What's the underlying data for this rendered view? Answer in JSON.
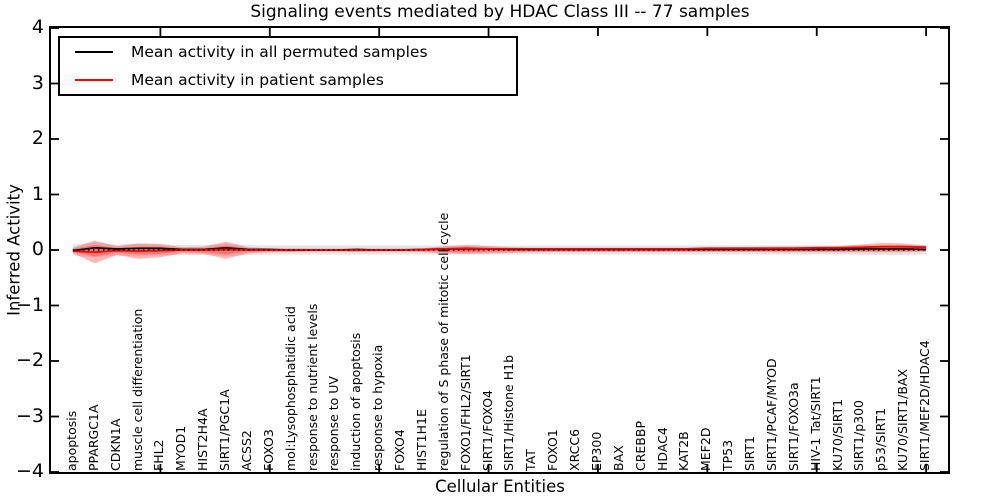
{
  "title": "Signaling events mediated by HDAC Class III -- 77 samples",
  "axes": {
    "ylabel": "Inferred Activity",
    "xlabel": "Cellular Entities",
    "ytick_labels": [
      "4",
      "3",
      "2",
      "1",
      "0",
      "−1",
      "−2",
      "−3",
      "−4"
    ],
    "ytick_values": [
      4,
      3,
      2,
      1,
      0,
      -1,
      -2,
      -3,
      -4
    ]
  },
  "legend": {
    "entries": [
      {
        "label": "Mean activity in all permuted samples",
        "color": "#000000"
      },
      {
        "label": "Mean activity in patient samples",
        "color": "#ff0000"
      }
    ]
  },
  "chart_data": {
    "type": "line",
    "title": "Signaling events mediated by HDAC Class III -- 77 samples",
    "xlabel": "Cellular Entities",
    "ylabel": "Inferred Activity",
    "ylim": [
      -4,
      4
    ],
    "grid": false,
    "legend_position": "upper left",
    "xtick_positions": [
      5,
      10,
      15,
      20,
      25,
      30,
      35,
      40
    ],
    "categories": [
      "apoptosis",
      "PPARGC1A",
      "CDKN1A",
      "muscle cell differentiation",
      "FHL2",
      "MYOD1",
      "HIST2H4A",
      "SIRT1/PGC1A",
      "ACSS2",
      "FOXO3",
      "mol:Lysophosphatidic acid",
      "response to nutrient levels",
      "response to UV",
      "induction of apoptosis",
      "response to hypoxia",
      "FOXO4",
      "HIST1H1E",
      "regulation of S phase of mitotic cell cycle",
      "FOXO1/FHL2/SIRT1",
      "SIRT1/FOXO4",
      "SIRT1/Histone H1b",
      "TAT",
      "FOXO1",
      "XRCC6",
      "EP300",
      "BAX",
      "CREBBP",
      "HDAC4",
      "KAT2B",
      "MEF2D",
      "TP53",
      "SIRT1",
      "SIRT1/PCAF/MYOD",
      "SIRT1/FOXO3a",
      "HIV-1 Tat/SIRT1",
      "KU70/SIRT1",
      "SIRT1/p300",
      "p53/SIRT1",
      "KU70/SIRT1/BAX",
      "SIRT1/MEF2D/HDAC4"
    ],
    "series": [
      {
        "name": "Mean activity in all permuted samples",
        "color": "#000000",
        "style": "solid",
        "width": 1.6,
        "values": [
          -0.01,
          0.04,
          0.02,
          0.03,
          0.03,
          0.01,
          0.01,
          0.04,
          0.01,
          0.01,
          0,
          0,
          0,
          0.01,
          0,
          0,
          0.01,
          0.02,
          0.02,
          0.02,
          0.01,
          0.01,
          0.01,
          0.01,
          0.01,
          0.01,
          0.01,
          0.01,
          0.01,
          0.01,
          0.01,
          0.01,
          0.01,
          0.01,
          0.01,
          0.01,
          0.02,
          0.02,
          0.02,
          0.01
        ]
      },
      {
        "name": "Mean activity in patient samples",
        "color": "#ff0000",
        "style": "solid",
        "width": 1.8,
        "values": [
          -0.02,
          -0.04,
          -0.01,
          -0.02,
          -0.01,
          0,
          0,
          0.01,
          0,
          0,
          0,
          0,
          0,
          0,
          0,
          0,
          0.01,
          0.02,
          0.03,
          0.02,
          0.02,
          0.02,
          0.02,
          0.02,
          0.02,
          0.02,
          0.02,
          0.02,
          0.02,
          0.03,
          0.03,
          0.03,
          0.03,
          0.03,
          0.04,
          0.04,
          0.05,
          0.06,
          0.06,
          0.05
        ]
      },
      {
        "name": "zero-reference",
        "color": "#000000",
        "style": "dotted",
        "width": 1.6,
        "constant": 0
      }
    ],
    "bands": [
      {
        "name": "permuted-samples-std-band",
        "color": "#000000",
        "opacity": 0.1,
        "upper": [
          0.1,
          0.13,
          0.1,
          0.11,
          0.1,
          0.09,
          0.09,
          0.11,
          0.09,
          0.08,
          0.08,
          0.08,
          0.08,
          0.08,
          0.08,
          0.08,
          0.08,
          0.08,
          0.08,
          0.08,
          0.08,
          0.08,
          0.08,
          0.08,
          0.08,
          0.08,
          0.08,
          0.08,
          0.08,
          0.08,
          0.08,
          0.08,
          0.08,
          0.08,
          0.08,
          0.08,
          0.09,
          0.09,
          0.09,
          0.08
        ],
        "lower": [
          -0.1,
          -0.13,
          -0.1,
          -0.11,
          -0.1,
          -0.09,
          -0.09,
          -0.11,
          -0.09,
          -0.08,
          -0.08,
          -0.08,
          -0.08,
          -0.08,
          -0.08,
          -0.08,
          -0.08,
          -0.08,
          -0.08,
          -0.08,
          -0.08,
          -0.08,
          -0.08,
          -0.08,
          -0.08,
          -0.08,
          -0.08,
          -0.08,
          -0.08,
          -0.08,
          -0.08,
          -0.08,
          -0.08,
          -0.08,
          -0.08,
          -0.08,
          -0.09,
          -0.09,
          -0.09,
          -0.08
        ]
      },
      {
        "name": "patient-samples-std-band-outer",
        "color": "#ff0000",
        "opacity": 0.28,
        "upper": [
          0.04,
          0.17,
          0.07,
          0.12,
          0.11,
          0.05,
          0.06,
          0.15,
          0.05,
          0.03,
          0.03,
          0.025,
          0.025,
          0.03,
          0.025,
          0.025,
          0.03,
          0.07,
          0.09,
          0.07,
          0.05,
          0.04,
          0.04,
          0.04,
          0.04,
          0.04,
          0.04,
          0.04,
          0.04,
          0.04,
          0.05,
          0.05,
          0.06,
          0.06,
          0.06,
          0.07,
          0.1,
          0.13,
          0.12,
          0.08
        ],
        "lower": [
          -0.06,
          -0.24,
          -0.09,
          -0.16,
          -0.13,
          -0.06,
          -0.07,
          -0.16,
          -0.06,
          -0.04,
          -0.035,
          -0.03,
          -0.03,
          -0.035,
          -0.03,
          -0.03,
          -0.035,
          -0.06,
          -0.07,
          -0.06,
          -0.05,
          -0.04,
          -0.035,
          -0.035,
          -0.035,
          -0.035,
          -0.035,
          -0.035,
          -0.035,
          -0.035,
          -0.035,
          -0.035,
          -0.04,
          -0.04,
          -0.04,
          -0.04,
          -0.04,
          -0.04,
          -0.04,
          -0.03
        ]
      },
      {
        "name": "patient-samples-std-band-inner",
        "color": "#ff0000",
        "opacity": 0.28,
        "upper": [
          0.02,
          0.09,
          0.04,
          0.06,
          0.06,
          0.03,
          0.03,
          0.08,
          0.03,
          0.015,
          0.015,
          0.012,
          0.012,
          0.015,
          0.012,
          0.012,
          0.015,
          0.04,
          0.05,
          0.04,
          0.03,
          0.02,
          0.02,
          0.02,
          0.02,
          0.02,
          0.02,
          0.02,
          0.02,
          0.02,
          0.025,
          0.025,
          0.03,
          0.03,
          0.03,
          0.035,
          0.05,
          0.07,
          0.06,
          0.04
        ],
        "lower": [
          -0.03,
          -0.12,
          -0.05,
          -0.08,
          -0.07,
          -0.03,
          -0.04,
          -0.08,
          -0.03,
          -0.02,
          -0.02,
          -0.015,
          -0.015,
          -0.02,
          -0.015,
          -0.015,
          -0.02,
          -0.03,
          -0.04,
          -0.03,
          -0.025,
          -0.02,
          -0.02,
          -0.02,
          -0.02,
          -0.02,
          -0.02,
          -0.02,
          -0.02,
          -0.02,
          -0.02,
          -0.02,
          -0.02,
          -0.02,
          -0.02,
          -0.02,
          -0.02,
          -0.02,
          -0.02,
          -0.015
        ]
      }
    ]
  }
}
